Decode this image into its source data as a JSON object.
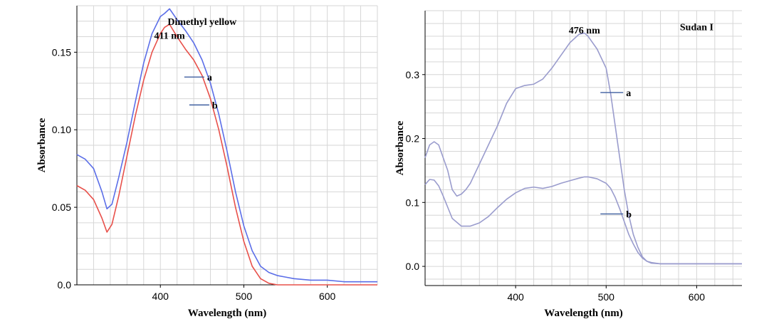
{
  "chart_data": [
    {
      "type": "line",
      "title": "",
      "xlabel": "Wavelength (nm)",
      "ylabel": "Absorbance",
      "xlim": [
        300,
        660
      ],
      "ylim": [
        0,
        0.18
      ],
      "x_ticks": [
        400,
        500,
        600
      ],
      "y_ticks": [
        0.0,
        0.05,
        0.1,
        0.15
      ],
      "y_tick_labels": [
        "0.0",
        "0.05",
        "0.10",
        "0.15"
      ],
      "grid": true,
      "annotations": [
        {
          "text": "Dimethyl yellow",
          "x": 450,
          "y": 0.17
        },
        {
          "text": "411 nm",
          "x": 411,
          "y": 0.161
        },
        {
          "text": "a",
          "x": 456,
          "y": 0.134
        },
        {
          "text": "b",
          "x": 462,
          "y": 0.116
        }
      ],
      "series": [
        {
          "color": "#5b6ee8",
          "x": [
            300,
            310,
            320,
            330,
            336,
            342,
            350,
            360,
            370,
            380,
            390,
            400,
            405,
            411,
            420,
            430,
            440,
            450,
            460,
            470,
            480,
            490,
            500,
            510,
            520,
            530,
            540,
            550,
            560,
            580,
            600,
            620,
            640,
            660
          ],
          "y": [
            0.084,
            0.081,
            0.075,
            0.06,
            0.049,
            0.052,
            0.069,
            0.092,
            0.118,
            0.143,
            0.162,
            0.173,
            0.175,
            0.178,
            0.171,
            0.164,
            0.156,
            0.145,
            0.13,
            0.11,
            0.086,
            0.06,
            0.038,
            0.022,
            0.012,
            0.008,
            0.006,
            0.005,
            0.004,
            0.003,
            0.003,
            0.002,
            0.002,
            0.002
          ]
        },
        {
          "color": "#e8504a",
          "x": [
            300,
            310,
            320,
            330,
            336,
            342,
            350,
            360,
            370,
            380,
            390,
            400,
            405,
            411,
            420,
            430,
            440,
            450,
            460,
            470,
            480,
            490,
            500,
            510,
            520,
            530,
            540,
            550,
            560,
            580,
            600,
            620,
            640,
            660
          ],
          "y": [
            0.064,
            0.061,
            0.055,
            0.043,
            0.034,
            0.039,
            0.057,
            0.083,
            0.109,
            0.132,
            0.15,
            0.162,
            0.166,
            0.168,
            0.16,
            0.152,
            0.145,
            0.135,
            0.12,
            0.1,
            0.076,
            0.05,
            0.028,
            0.012,
            0.004,
            0.001,
            0.0,
            0.0,
            0.0,
            0.0,
            0.0,
            0.0,
            0.0,
            0.0
          ]
        }
      ]
    },
    {
      "type": "line",
      "title": "",
      "xlabel": "Wavelength (nm)",
      "ylabel": "Absorbance",
      "xlim": [
        300,
        650
      ],
      "ylim": [
        -0.03,
        0.4
      ],
      "x_ticks": [
        400,
        500,
        600
      ],
      "y_ticks": [
        0.0,
        0.1,
        0.2,
        0.3
      ],
      "y_tick_labels": [
        "0.0",
        "0.1",
        "0.2",
        "0.3"
      ],
      "grid": true,
      "annotations": [
        {
          "text": "Sudan I",
          "x": 600,
          "y": 0.375
        },
        {
          "text": "476 nm",
          "x": 476,
          "y": 0.37
        },
        {
          "text": "a",
          "x": 522,
          "y": 0.272
        },
        {
          "text": "b",
          "x": 522,
          "y": 0.082
        }
      ],
      "series": [
        {
          "color": "#9a9ccd",
          "x": [
            300,
            305,
            310,
            315,
            320,
            325,
            330,
            335,
            340,
            345,
            350,
            360,
            370,
            380,
            390,
            400,
            410,
            420,
            430,
            440,
            450,
            460,
            470,
            476,
            480,
            490,
            500,
            505,
            510,
            515,
            520,
            525,
            530,
            535,
            540,
            545,
            550,
            560,
            570,
            580,
            600,
            620,
            640,
            650
          ],
          "y": [
            0.17,
            0.19,
            0.195,
            0.19,
            0.17,
            0.15,
            0.12,
            0.11,
            0.113,
            0.12,
            0.13,
            0.16,
            0.19,
            0.22,
            0.255,
            0.278,
            0.283,
            0.285,
            0.293,
            0.31,
            0.33,
            0.35,
            0.363,
            0.365,
            0.36,
            0.34,
            0.31,
            0.27,
            0.22,
            0.17,
            0.12,
            0.08,
            0.05,
            0.03,
            0.015,
            0.008,
            0.005,
            0.004,
            0.004,
            0.004,
            0.004,
            0.004,
            0.004,
            0.004
          ]
        },
        {
          "color": "#9a9ccd",
          "x": [
            300,
            305,
            310,
            315,
            320,
            330,
            340,
            350,
            360,
            370,
            380,
            390,
            400,
            410,
            420,
            430,
            440,
            450,
            460,
            470,
            476,
            480,
            490,
            500,
            505,
            510,
            515,
            520,
            525,
            530,
            535,
            540,
            545,
            550,
            560,
            570,
            580,
            600,
            620,
            640,
            650
          ],
          "y": [
            0.128,
            0.136,
            0.135,
            0.126,
            0.11,
            0.075,
            0.063,
            0.063,
            0.068,
            0.078,
            0.092,
            0.105,
            0.115,
            0.122,
            0.124,
            0.122,
            0.125,
            0.13,
            0.134,
            0.138,
            0.14,
            0.14,
            0.137,
            0.13,
            0.122,
            0.108,
            0.09,
            0.07,
            0.05,
            0.035,
            0.022,
            0.013,
            0.008,
            0.006,
            0.004,
            0.004,
            0.004,
            0.004,
            0.004,
            0.004,
            0.004
          ]
        }
      ]
    }
  ]
}
